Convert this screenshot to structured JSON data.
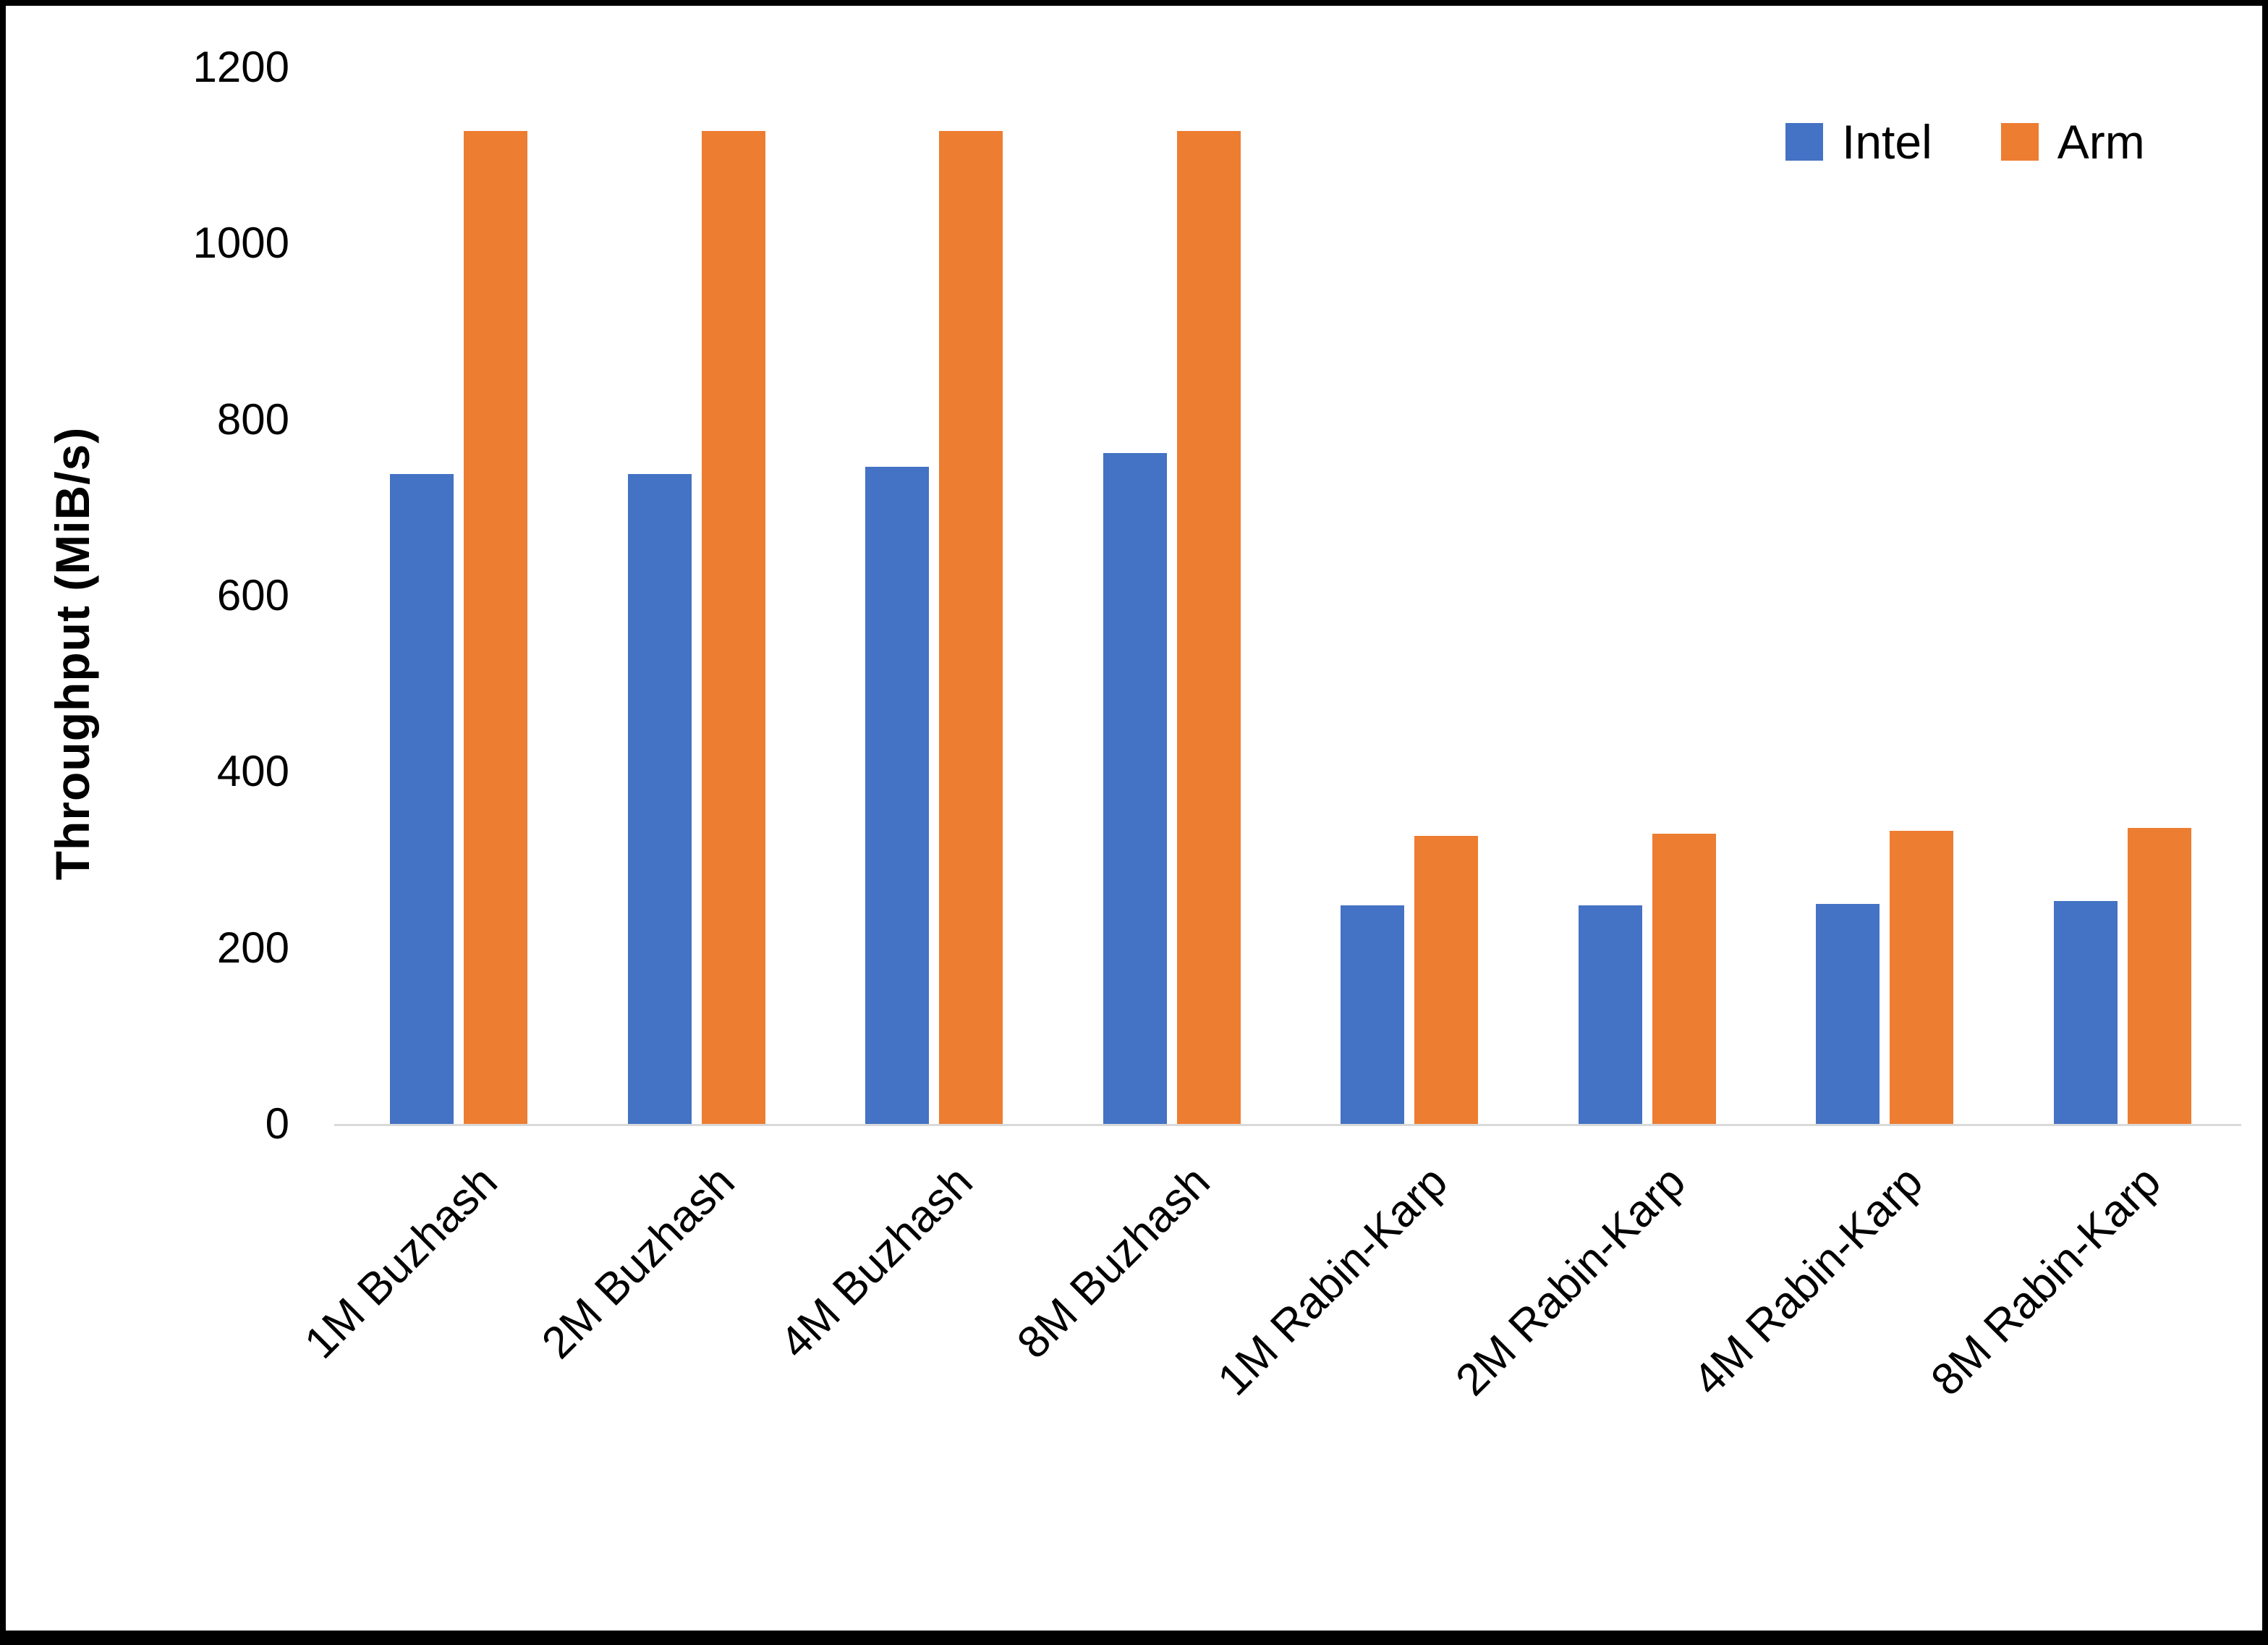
{
  "chart_data": {
    "type": "bar",
    "title": "",
    "xlabel": "",
    "ylabel": "Throughput (MiB/s)",
    "categories": [
      "1M Buzhash",
      "2M Buzhash",
      "4M Buzhash",
      "8M Buzhash",
      "1M Rabin-Karp",
      "2M Rabin-Karp",
      "4M Rabin-Karp",
      "8M Rabin-Karp"
    ],
    "series": [
      {
        "name": "Intel",
        "color": "#4472C4",
        "values": [
          738,
          738,
          746,
          762,
          248,
          248,
          250,
          253
        ]
      },
      {
        "name": "Arm",
        "color": "#ED7D31",
        "values": [
          1128,
          1128,
          1128,
          1128,
          327,
          330,
          333,
          336
        ]
      }
    ],
    "ylim": [
      0,
      1200
    ],
    "yticks": [
      0,
      200,
      400,
      600,
      800,
      1000,
      1200
    ],
    "grid": false,
    "legend_position": "top-right"
  },
  "colors": {
    "background": "#ffffff",
    "frame_border": "#000000",
    "axis_line": "#d9d9d9",
    "text": "#000000",
    "intel": "#4472C4",
    "arm": "#ED7D31"
  }
}
